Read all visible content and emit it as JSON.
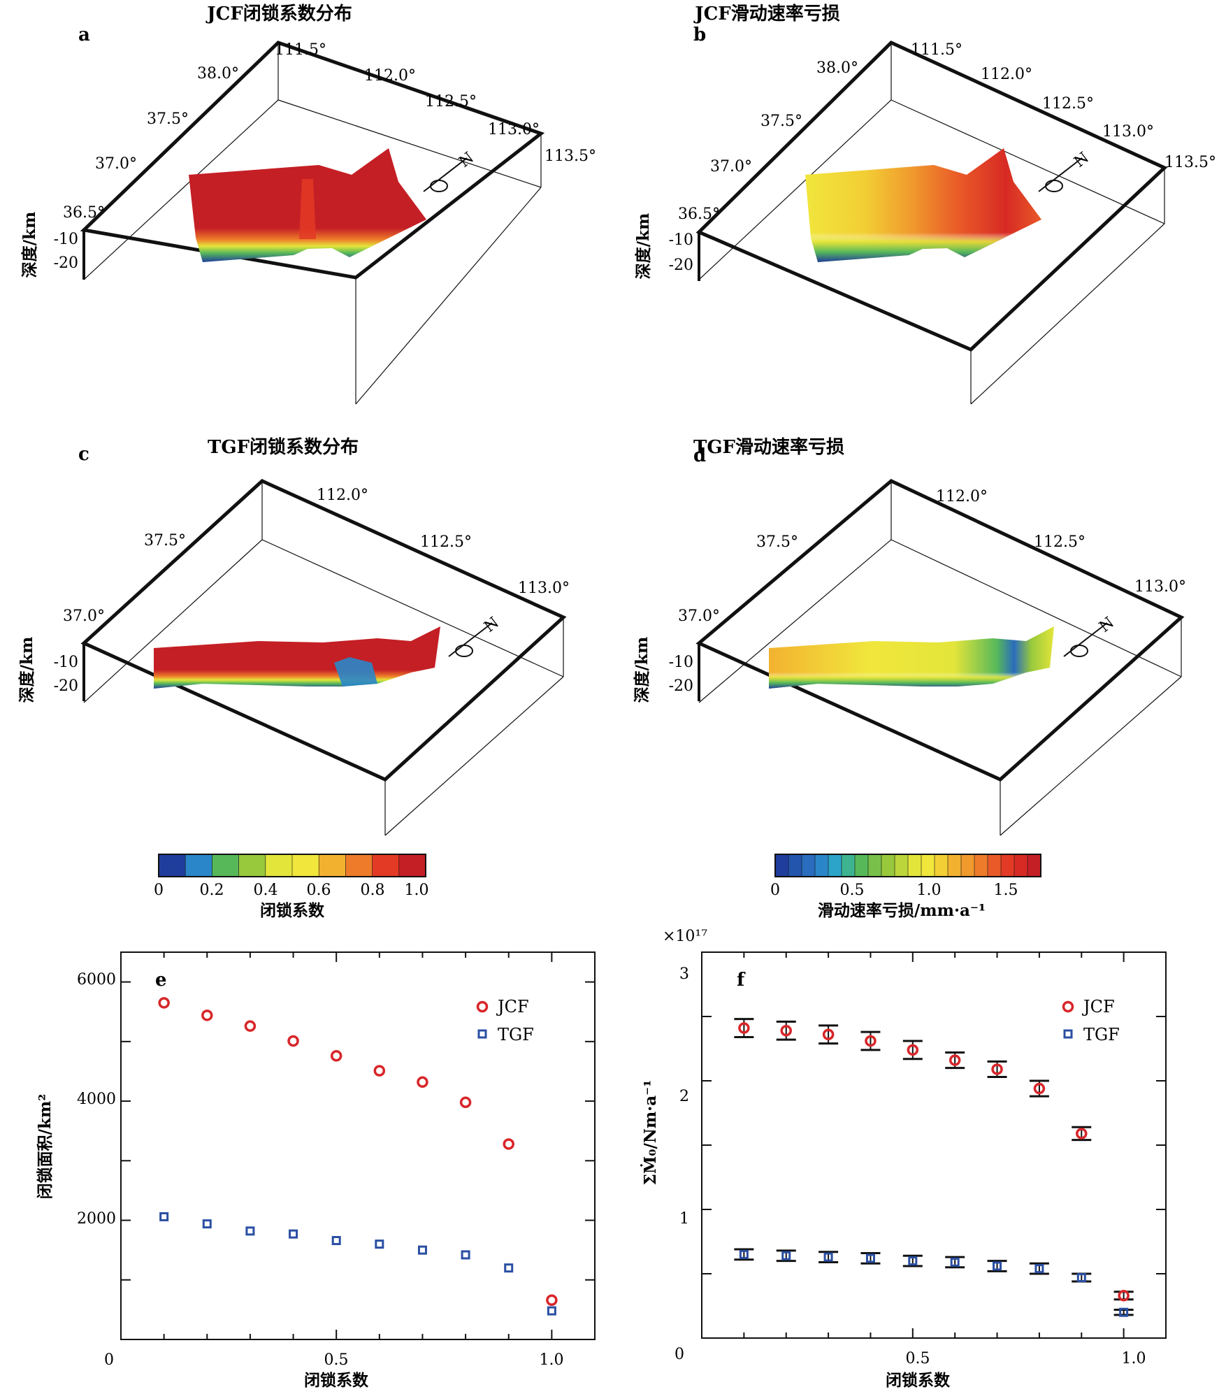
{
  "panels_3d": [
    {
      "letter": "a",
      "title": "JCF闭锁系数分布",
      "lon_ticks": [
        "111.5°",
        "112.0°",
        "112.5°",
        "113.0°",
        "113.5°"
      ],
      "lat_ticks": [
        "36.5°",
        "37.0°",
        "37.5°",
        "38.0°"
      ],
      "depth_label": "深度/km",
      "depth_ticks": [
        "-10",
        "-20"
      ],
      "north": "N"
    },
    {
      "letter": "b",
      "title": "JCF滑动速率亏损",
      "lon_ticks": [
        "111.5°",
        "112.0°",
        "112.5°",
        "113.0°",
        "113.5°"
      ],
      "lat_ticks": [
        "36.5°",
        "37.0°",
        "37.5°",
        "38.0°"
      ],
      "depth_label": "深度/km",
      "depth_ticks": [
        "-10",
        "-20"
      ],
      "north": "N"
    },
    {
      "letter": "c",
      "title": "TGF闭锁系数分布",
      "lon_ticks": [
        "112.0°",
        "112.5°",
        "113.0°"
      ],
      "lat_ticks": [
        "37.0°",
        "37.5°"
      ],
      "depth_label": "深度/km",
      "depth_ticks": [
        "-10",
        "-20"
      ],
      "north": "N"
    },
    {
      "letter": "d",
      "title": "TGF滑动速率亏损",
      "lon_ticks": [
        "112.0°",
        "112.5°",
        "113.0°"
      ],
      "lat_ticks": [
        "37.0°",
        "37.5°"
      ],
      "depth_label": "深度/km",
      "depth_ticks": [
        "-10",
        "-20"
      ],
      "north": "N"
    }
  ],
  "colorbars": [
    {
      "label": "闭锁系数",
      "ticks": [
        "0",
        "0.2",
        "0.4",
        "0.6",
        "0.8",
        "1.0"
      ],
      "colors": [
        "#1f3e9c",
        "#2a86c8",
        "#57b85a",
        "#98c93c",
        "#e3e53a",
        "#f1e63c",
        "#f2b230",
        "#ee7b2a",
        "#e33a25",
        "#c41f25"
      ]
    },
    {
      "label": "滑动速率亏损/mm·a⁻¹",
      "ticks": [
        "0",
        "0.5",
        "1.0",
        "1.5"
      ],
      "colors": [
        "#1f3e9c",
        "#2355ad",
        "#2a6cbd",
        "#2a86c8",
        "#2ba4c8",
        "#3db38f",
        "#57b85a",
        "#78c04a",
        "#98c93c",
        "#bcd53a",
        "#e3e53a",
        "#f1e63c",
        "#f2cf35",
        "#f2b230",
        "#f09a2d",
        "#ee7b2a",
        "#e95a28",
        "#e33a25",
        "#d72a24",
        "#c41f25"
      ]
    }
  ],
  "colors": {
    "jcf": "#d8262a",
    "tgf": "#2a4fa3",
    "deep": "#1f3e9c",
    "high": "#c41f25"
  },
  "chart_data": [
    {
      "type": "scatter",
      "panel": "e",
      "xlabel": "闭锁系数",
      "ylabel": "闭锁面积/km²",
      "xlim": [
        0,
        1.1
      ],
      "ylim": [
        0,
        6500
      ],
      "x_ticks": [
        "0",
        "0.5",
        "1.0"
      ],
      "y_ticks": [
        "2000",
        "4000",
        "6000"
      ],
      "legend_position": "top-right",
      "series": [
        {
          "name": "JCF",
          "marker": "circle",
          "x": [
            0.1,
            0.2,
            0.3,
            0.4,
            0.5,
            0.6,
            0.7,
            0.8,
            0.9,
            1.0
          ],
          "y": [
            5650,
            5440,
            5260,
            5010,
            4760,
            4510,
            4320,
            3980,
            3280,
            660
          ]
        },
        {
          "name": "TGF",
          "marker": "square",
          "x": [
            0.1,
            0.2,
            0.3,
            0.4,
            0.5,
            0.6,
            0.7,
            0.8,
            0.9,
            1.0
          ],
          "y": [
            2060,
            1940,
            1820,
            1770,
            1660,
            1600,
            1500,
            1420,
            1200,
            480
          ]
        }
      ]
    },
    {
      "type": "scatter",
      "panel": "f",
      "xlabel": "闭锁系数",
      "ylabel": "ΣṀ₀/Nm·a⁻¹",
      "multiplier": "×10¹⁷",
      "xlim": [
        0,
        1.1
      ],
      "ylim": [
        0,
        3.0
      ],
      "x_ticks": [
        "0",
        "0.5",
        "1.0"
      ],
      "y_ticks": [
        "1",
        "2",
        "3"
      ],
      "legend_position": "top-right",
      "series": [
        {
          "name": "JCF",
          "marker": "circle",
          "x": [
            0.1,
            0.2,
            0.3,
            0.4,
            0.5,
            0.6,
            0.7,
            0.8,
            0.9,
            1.0
          ],
          "y": [
            2.41,
            2.39,
            2.36,
            2.31,
            2.24,
            2.16,
            2.09,
            1.94,
            1.59,
            0.33
          ],
          "err": [
            0.07,
            0.07,
            0.07,
            0.07,
            0.07,
            0.06,
            0.06,
            0.06,
            0.05,
            0.03
          ]
        },
        {
          "name": "TGF",
          "marker": "square",
          "x": [
            0.1,
            0.2,
            0.3,
            0.4,
            0.5,
            0.6,
            0.7,
            0.8,
            0.9,
            1.0
          ],
          "y": [
            0.65,
            0.64,
            0.63,
            0.62,
            0.6,
            0.59,
            0.56,
            0.54,
            0.47,
            0.2
          ],
          "err": [
            0.04,
            0.04,
            0.04,
            0.04,
            0.04,
            0.04,
            0.04,
            0.04,
            0.03,
            0.02
          ]
        }
      ]
    }
  ]
}
